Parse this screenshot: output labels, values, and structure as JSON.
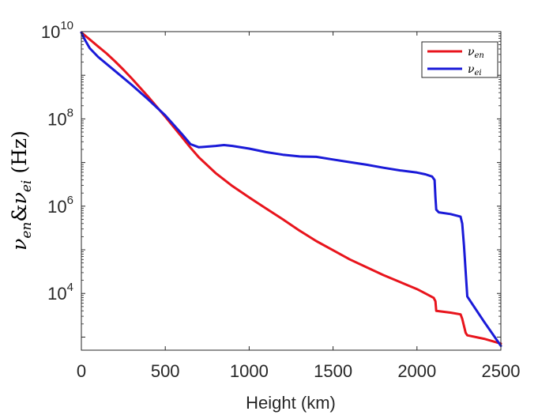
{
  "chart_data": {
    "type": "line",
    "title": "",
    "xlabel": "Height (km)",
    "ylabel": {
      "nu": "ν",
      "sub_en": "en",
      "amp": "&",
      "sub_ei": "ei",
      "unit": "(Hz)"
    },
    "xlim": [
      0,
      2500
    ],
    "ylim_log10": [
      2.7,
      10
    ],
    "yscale": "log",
    "x_ticks": [
      0,
      500,
      1000,
      1500,
      2000,
      2500
    ],
    "x_tick_labels": [
      "0",
      "500",
      "1000",
      "1500",
      "2000",
      "2500"
    ],
    "y_ticks_log10": [
      4,
      6,
      8,
      10
    ],
    "y_tick_base": "10",
    "y_tick_exponents": [
      "4",
      "6",
      "8",
      "10"
    ],
    "legend_position": "top-right",
    "series": [
      {
        "name": "nu_en",
        "legend_symbol": "ν",
        "legend_sub": "en",
        "color": "#e8141c",
        "x": [
          0,
          50,
          100,
          150,
          200,
          250,
          300,
          400,
          500,
          600,
          650,
          700,
          800,
          900,
          1000,
          1100,
          1200,
          1300,
          1400,
          1500,
          1600,
          1700,
          1800,
          1900,
          2000,
          2050,
          2100,
          2110,
          2115,
          2200,
          2260,
          2270,
          2290,
          2300,
          2400,
          2500
        ],
        "log10_y": [
          9.98,
          9.82,
          9.66,
          9.5,
          9.32,
          9.13,
          8.93,
          8.5,
          8.05,
          7.58,
          7.34,
          7.12,
          6.76,
          6.46,
          6.2,
          5.95,
          5.7,
          5.44,
          5.2,
          4.99,
          4.78,
          4.6,
          4.42,
          4.26,
          4.1,
          4.0,
          3.9,
          3.82,
          3.6,
          3.56,
          3.52,
          3.42,
          3.1,
          3.04,
          2.96,
          2.85
        ]
      },
      {
        "name": "nu_ei",
        "legend_symbol": "ν",
        "legend_sub": "ei",
        "color": "#1a1ad8",
        "x": [
          0,
          20,
          50,
          100,
          200,
          300,
          400,
          500,
          600,
          650,
          700,
          800,
          850,
          900,
          1000,
          1100,
          1200,
          1300,
          1400,
          1500,
          1600,
          1700,
          1800,
          1900,
          2000,
          2050,
          2090,
          2105,
          2110,
          2115,
          2130,
          2200,
          2260,
          2270,
          2280,
          2300,
          2400,
          2500
        ],
        "log10_y": [
          9.98,
          9.82,
          9.62,
          9.42,
          9.1,
          8.78,
          8.44,
          8.08,
          7.65,
          7.42,
          7.35,
          7.38,
          7.4,
          7.38,
          7.32,
          7.24,
          7.18,
          7.14,
          7.13,
          7.07,
          7.01,
          6.95,
          6.88,
          6.82,
          6.77,
          6.73,
          6.68,
          6.6,
          6.2,
          5.92,
          5.86,
          5.82,
          5.76,
          5.6,
          5.1,
          3.93,
          3.35,
          2.8
        ]
      }
    ]
  }
}
